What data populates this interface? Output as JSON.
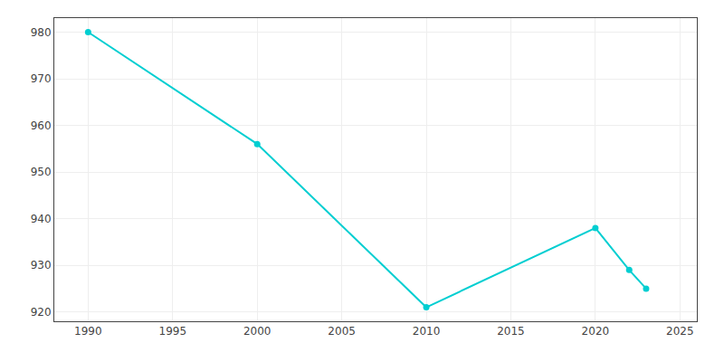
{
  "chart_data": {
    "type": "line",
    "x": [
      1990,
      2000,
      2010,
      2020,
      2022,
      2023
    ],
    "values": [
      980,
      956,
      921,
      938,
      929,
      925
    ],
    "color": "#00CED1",
    "marker": "circle",
    "xlim": [
      1988,
      2026
    ],
    "ylim": [
      918,
      983
    ],
    "xticks": [
      1990,
      1995,
      2000,
      2005,
      2010,
      2015,
      2020,
      2025
    ],
    "yticks": [
      920,
      930,
      940,
      950,
      960,
      970,
      980
    ],
    "grid": true
  }
}
